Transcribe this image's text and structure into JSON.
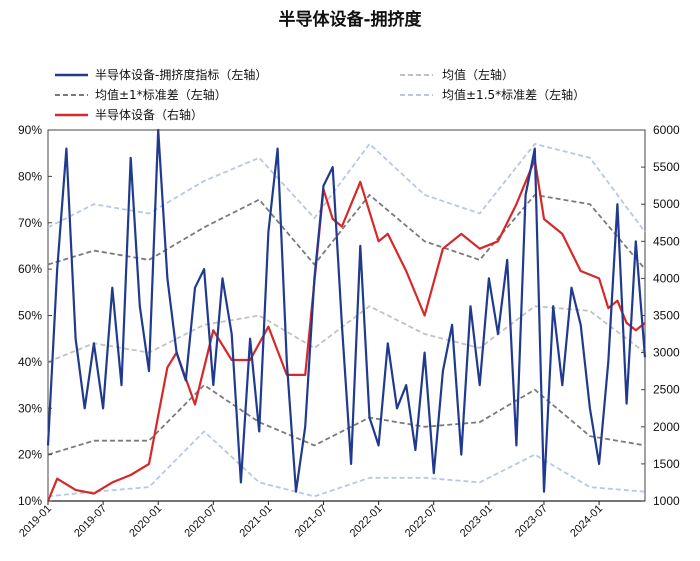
{
  "chart_data": {
    "type": "line",
    "title": "半导体设备-拥挤度",
    "left_axis": {
      "ticks": [
        "10%",
        "20%",
        "30%",
        "40%",
        "50%",
        "60%",
        "70%",
        "80%",
        "90%"
      ],
      "ylim": [
        10,
        90
      ],
      "unit": "%"
    },
    "right_axis": {
      "ticks": [
        "1000",
        "1500",
        "2000",
        "2500",
        "3000",
        "3500",
        "4000",
        "4500",
        "5000",
        "5500",
        "6000"
      ],
      "ylim": [
        1000,
        6000
      ]
    },
    "x_ticks": [
      "2019-01",
      "2019-07",
      "2020-01",
      "2020-07",
      "2021-01",
      "2021-07",
      "2022-01",
      "2022-07",
      "2023-01",
      "2023-07",
      "2024-01"
    ],
    "x_range": [
      "2019-01",
      "2024-06"
    ],
    "legend_position": "top",
    "colors": {
      "crowd": "#1f3a8f",
      "mean": "#c2c2c2",
      "band1": "#7a7a7a",
      "band15": "#b8c8e4",
      "index": "#d62828"
    },
    "legend": [
      {
        "key": "crowd",
        "label": "半导体设备-拥挤度指标（左轴）"
      },
      {
        "key": "mean",
        "label": "均值（左轴）"
      },
      {
        "key": "band1",
        "label": "均值±1*标准差（左轴）"
      },
      {
        "key": "band15",
        "label": "均值±1.5*标准差（左轴）"
      },
      {
        "key": "index",
        "label": "半导体设备（右轴）"
      }
    ],
    "series": [
      {
        "name": "半导体设备-拥挤度指标（左轴）",
        "axis": "left",
        "key": "crowd",
        "x": [
          "2019-01",
          "2019-02",
          "2019-03",
          "2019-04",
          "2019-05",
          "2019-06",
          "2019-07",
          "2019-08",
          "2019-09",
          "2019-10",
          "2019-11",
          "2019-12",
          "2020-01",
          "2020-02",
          "2020-03",
          "2020-04",
          "2020-05",
          "2020-06",
          "2020-07",
          "2020-08",
          "2020-09",
          "2020-10",
          "2020-11",
          "2020-12",
          "2021-01",
          "2021-02",
          "2021-03",
          "2021-04",
          "2021-05",
          "2021-06",
          "2021-07",
          "2021-08",
          "2021-09",
          "2021-10",
          "2021-11",
          "2021-12",
          "2022-01",
          "2022-02",
          "2022-03",
          "2022-04",
          "2022-05",
          "2022-06",
          "2022-07",
          "2022-08",
          "2022-09",
          "2022-10",
          "2022-11",
          "2022-12",
          "2023-01",
          "2023-02",
          "2023-03",
          "2023-04",
          "2023-05",
          "2023-06",
          "2023-07",
          "2023-08",
          "2023-09",
          "2023-10",
          "2023-11",
          "2023-12",
          "2024-01",
          "2024-02",
          "2024-03",
          "2024-04",
          "2024-05",
          "2024-06"
        ],
        "values": [
          22,
          60,
          86,
          45,
          30,
          44,
          30,
          56,
          35,
          84,
          52,
          38,
          90,
          58,
          42,
          36,
          56,
          60,
          35,
          58,
          46,
          14,
          45,
          25,
          68,
          86,
          40,
          12,
          26,
          58,
          78,
          82,
          48,
          18,
          65,
          28,
          22,
          44,
          30,
          35,
          21,
          42,
          16,
          38,
          48,
          20,
          52,
          35,
          58,
          46,
          62,
          22,
          76,
          86,
          12,
          52,
          35,
          56,
          48,
          30,
          18,
          40,
          74,
          31,
          66,
          41
        ]
      },
      {
        "name": "均值（左轴）",
        "axis": "left",
        "key": "mean",
        "x": [
          "2019-01",
          "2019-06",
          "2019-12",
          "2020-06",
          "2020-12",
          "2021-06",
          "2021-12",
          "2022-06",
          "2022-12",
          "2023-06",
          "2023-12",
          "2024-06"
        ],
        "values": [
          40,
          44,
          42,
          48,
          50,
          43,
          52,
          46,
          43,
          52,
          51,
          42
        ]
      },
      {
        "name": "均值+1*标准差（左轴）",
        "axis": "left",
        "key": "band1",
        "x": [
          "2019-01",
          "2019-06",
          "2019-12",
          "2020-06",
          "2020-12",
          "2021-06",
          "2021-12",
          "2022-06",
          "2022-12",
          "2023-06",
          "2023-12",
          "2024-06"
        ],
        "values": [
          61,
          64,
          62,
          69,
          75,
          61,
          76,
          66,
          62,
          76,
          74,
          60
        ]
      },
      {
        "name": "均值-1*标准差（左轴）",
        "axis": "left",
        "key": "band1",
        "x": [
          "2019-01",
          "2019-06",
          "2019-12",
          "2020-06",
          "2020-12",
          "2021-06",
          "2021-12",
          "2022-06",
          "2022-12",
          "2023-06",
          "2023-12",
          "2024-06"
        ],
        "values": [
          20,
          23,
          23,
          35,
          27,
          22,
          28,
          26,
          27,
          34,
          24,
          22
        ]
      },
      {
        "name": "均值+1.5*标准差（左轴）",
        "axis": "left",
        "key": "band15",
        "x": [
          "2019-01",
          "2019-06",
          "2019-12",
          "2020-06",
          "2020-12",
          "2021-06",
          "2021-12",
          "2022-06",
          "2022-12",
          "2023-06",
          "2023-12",
          "2024-06"
        ],
        "values": [
          69,
          74,
          72,
          79,
          84,
          71,
          87,
          76,
          72,
          87,
          84,
          68
        ]
      },
      {
        "name": "均值-1.5*标准差（左轴）",
        "axis": "left",
        "key": "band15",
        "x": [
          "2019-01",
          "2019-06",
          "2019-12",
          "2020-06",
          "2020-12",
          "2021-06",
          "2021-12",
          "2022-06",
          "2022-12",
          "2023-06",
          "2023-12",
          "2024-06"
        ],
        "values": [
          11,
          12,
          13,
          25,
          14,
          11,
          15,
          15,
          14,
          20,
          13,
          12
        ]
      },
      {
        "name": "半导体设备（右轴）",
        "axis": "right",
        "key": "index",
        "x": [
          "2019-01",
          "2019-02",
          "2019-04",
          "2019-06",
          "2019-08",
          "2019-10",
          "2019-12",
          "2020-02",
          "2020-03",
          "2020-05",
          "2020-07",
          "2020-09",
          "2020-11",
          "2021-01",
          "2021-03",
          "2021-05",
          "2021-07",
          "2021-08",
          "2021-09",
          "2021-11",
          "2022-01",
          "2022-02",
          "2022-04",
          "2022-06",
          "2022-08",
          "2022-10",
          "2022-12",
          "2023-02",
          "2023-04",
          "2023-06",
          "2023-07",
          "2023-09",
          "2023-11",
          "2024-01",
          "2024-02",
          "2024-03",
          "2024-04",
          "2024-05",
          "2024-06"
        ],
        "values": [
          1000,
          1300,
          1150,
          1100,
          1250,
          1350,
          1500,
          2800,
          3000,
          2300,
          3300,
          2900,
          2900,
          3350,
          2700,
          2700,
          5200,
          4800,
          4700,
          5300,
          4500,
          4600,
          4100,
          3500,
          4400,
          4600,
          4400,
          4500,
          5000,
          5600,
          4800,
          4600,
          4100,
          4000,
          3600,
          3700,
          3400,
          3300,
          3400
        ]
      }
    ]
  }
}
